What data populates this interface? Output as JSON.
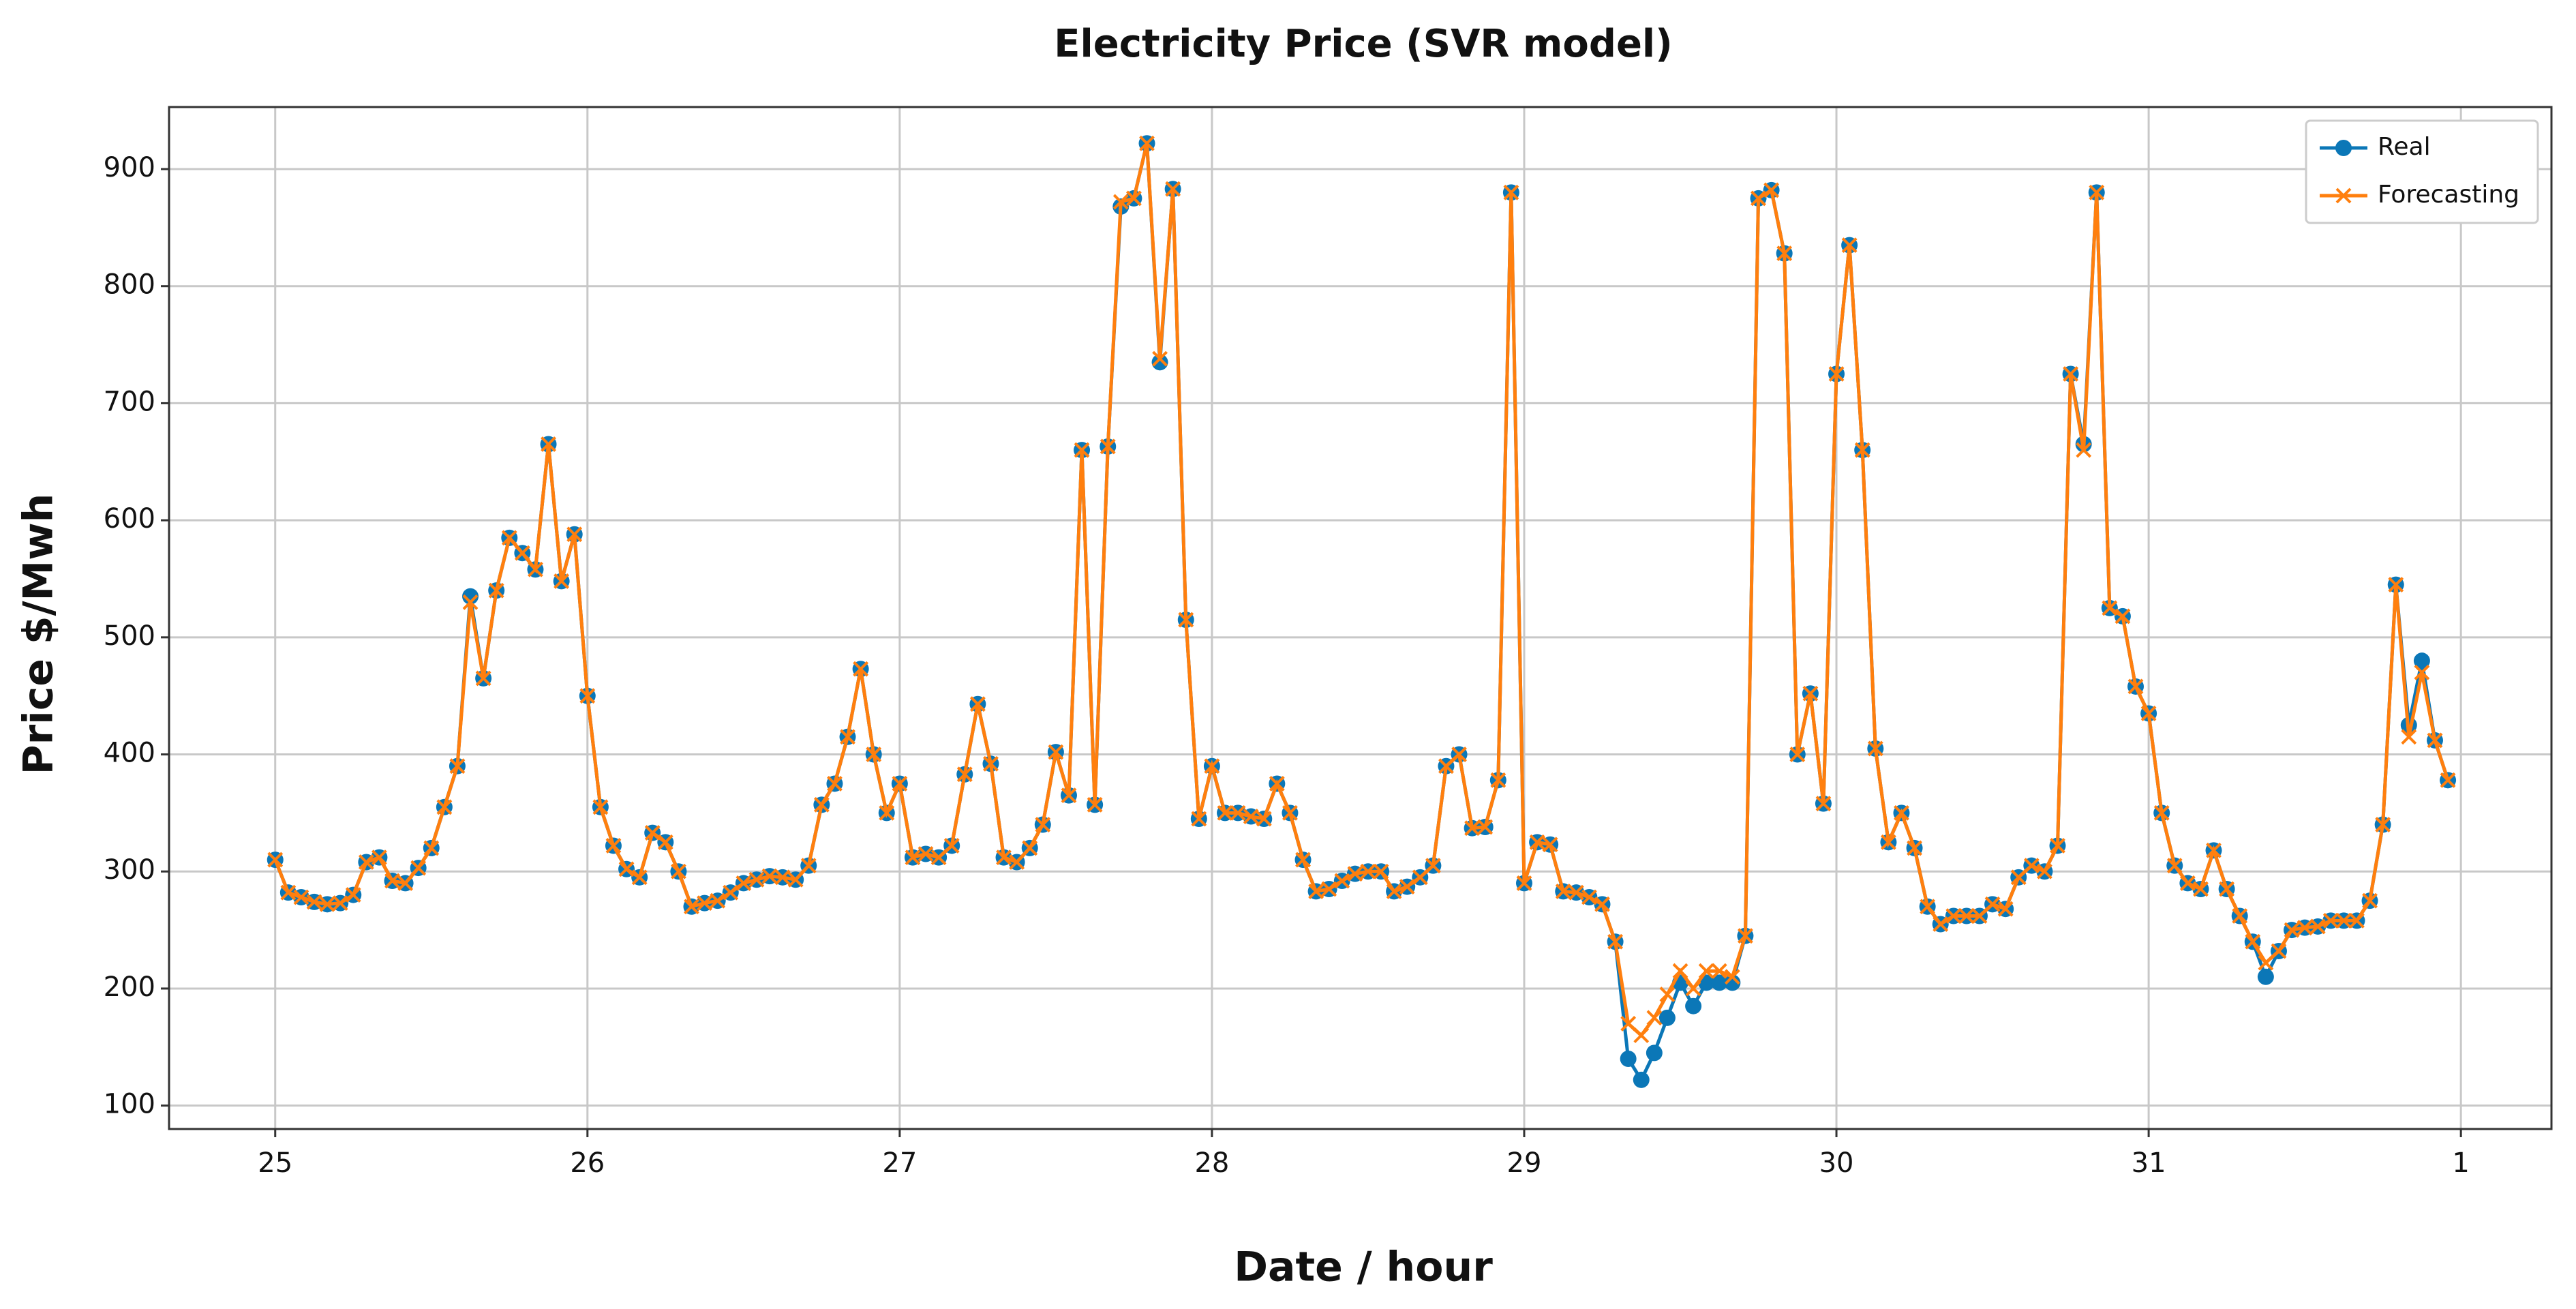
{
  "chart_data": {
    "type": "line",
    "title": "Electricity  Price (SVR model)",
    "xlabel": "Date / hour",
    "ylabel": "Price $/Mwh",
    "x": [
      25,
      25.0417,
      25.0833,
      25.125,
      25.1667,
      25.2083,
      25.25,
      25.2917,
      25.3333,
      25.375,
      25.4167,
      25.4583,
      25.5,
      25.5417,
      25.5833,
      25.625,
      25.6667,
      25.7083,
      25.75,
      25.7917,
      25.8333,
      25.875,
      25.9167,
      25.9583,
      26,
      26.0417,
      26.0833,
      26.125,
      26.1667,
      26.2083,
      26.25,
      26.2917,
      26.3333,
      26.375,
      26.4167,
      26.4583,
      26.5,
      26.5417,
      26.5833,
      26.625,
      26.6667,
      26.7083,
      26.75,
      26.7917,
      26.8333,
      26.875,
      26.9167,
      26.9583,
      27,
      27.0417,
      27.0833,
      27.125,
      27.1667,
      27.2083,
      27.25,
      27.2917,
      27.3333,
      27.375,
      27.4167,
      27.4583,
      27.5,
      27.5417,
      27.5833,
      27.625,
      27.6667,
      27.7083,
      27.75,
      27.7917,
      27.8333,
      27.875,
      27.9167,
      27.9583,
      28,
      28.0417,
      28.0833,
      28.125,
      28.1667,
      28.2083,
      28.25,
      28.2917,
      28.3333,
      28.375,
      28.4167,
      28.4583,
      28.5,
      28.5417,
      28.5833,
      28.625,
      28.6667,
      28.7083,
      28.75,
      28.7917,
      28.8333,
      28.875,
      28.9167,
      28.9583,
      29,
      29.0417,
      29.0833,
      29.125,
      29.1667,
      29.2083,
      29.25,
      29.2917,
      29.3333,
      29.375,
      29.4167,
      29.4583,
      29.5,
      29.5417,
      29.5833,
      29.625,
      29.6667,
      29.7083,
      29.75,
      29.7917,
      29.8333,
      29.875,
      29.9167,
      29.9583,
      30,
      30.0417,
      30.0833,
      30.125,
      30.1667,
      30.2083,
      30.25,
      30.2917,
      30.3333,
      30.375,
      30.4167,
      30.4583,
      30.5,
      30.5417,
      30.5833,
      30.625,
      30.6667,
      30.7083,
      30.75,
      30.7917,
      30.8333,
      30.875,
      30.9167,
      30.9583,
      31,
      31.0417,
      31.0833,
      31.125,
      31.1667,
      31.2083,
      31.25,
      31.2917,
      31.3333,
      31.375,
      31.4167,
      31.4583,
      31.5,
      31.5417,
      31.5833,
      31.625,
      31.6667,
      31.7083,
      31.75,
      31.7917,
      31.8333,
      31.875,
      31.9167,
      31.9583
    ],
    "series": [
      {
        "name": "Real",
        "color": "#0b77b7",
        "marker": "o",
        "values": [
          310,
          282,
          278,
          274,
          272,
          273,
          280,
          308,
          312,
          292,
          290,
          303,
          320,
          355,
          390,
          535,
          465,
          540,
          585,
          572,
          558,
          665,
          548,
          588,
          450,
          355,
          322,
          302,
          295,
          333,
          325,
          300,
          270,
          273,
          275,
          282,
          290,
          293,
          296,
          295,
          293,
          305,
          357,
          375,
          415,
          473,
          400,
          350,
          375,
          312,
          315,
          312,
          322,
          383,
          443,
          392,
          312,
          308,
          320,
          340,
          402,
          365,
          660,
          357,
          663,
          868,
          875,
          922,
          735,
          883,
          515,
          345,
          390,
          350,
          350,
          347,
          345,
          375,
          350,
          310,
          283,
          285,
          292,
          298,
          300,
          300,
          283,
          287,
          295,
          305,
          390,
          400,
          337,
          338,
          378,
          880,
          290,
          325,
          323,
          283,
          282,
          278,
          272,
          240,
          140,
          122,
          145,
          175,
          205,
          185,
          205,
          205,
          205,
          245,
          875,
          882,
          828,
          400,
          452,
          358,
          725,
          835,
          660,
          405,
          325,
          350,
          320,
          270,
          255,
          262,
          262,
          262,
          272,
          268,
          295,
          305,
          300,
          322,
          725,
          665,
          880,
          525,
          518,
          458,
          435,
          350,
          305,
          290,
          285,
          318,
          285,
          262,
          240,
          210,
          232,
          250,
          252,
          253,
          258,
          258,
          258,
          275,
          340,
          545,
          425,
          480,
          412,
          378
        ]
      },
      {
        "name": "Forecasting",
        "color": "#ff7f0e",
        "marker": "x",
        "values": [
          310,
          282,
          278,
          274,
          272,
          273,
          280,
          308,
          312,
          292,
          290,
          303,
          320,
          355,
          390,
          530,
          465,
          540,
          585,
          572,
          558,
          665,
          548,
          588,
          450,
          355,
          322,
          302,
          295,
          333,
          325,
          300,
          270,
          273,
          275,
          282,
          290,
          293,
          296,
          295,
          293,
          305,
          357,
          375,
          415,
          473,
          400,
          350,
          375,
          312,
          315,
          312,
          322,
          383,
          443,
          392,
          312,
          308,
          320,
          340,
          402,
          365,
          660,
          357,
          663,
          872,
          875,
          922,
          738,
          883,
          515,
          345,
          390,
          350,
          350,
          347,
          345,
          375,
          350,
          310,
          283,
          285,
          292,
          298,
          300,
          300,
          283,
          287,
          295,
          305,
          390,
          400,
          337,
          338,
          378,
          880,
          290,
          325,
          323,
          283,
          282,
          278,
          272,
          240,
          170,
          160,
          175,
          195,
          215,
          200,
          215,
          215,
          210,
          245,
          875,
          882,
          828,
          400,
          452,
          358,
          725,
          835,
          660,
          405,
          325,
          350,
          320,
          270,
          255,
          262,
          262,
          262,
          272,
          268,
          295,
          305,
          300,
          322,
          725,
          660,
          880,
          525,
          518,
          458,
          435,
          350,
          305,
          290,
          285,
          318,
          285,
          262,
          240,
          222,
          232,
          250,
          252,
          253,
          258,
          258,
          258,
          275,
          340,
          545,
          415,
          470,
          412,
          378
        ]
      }
    ],
    "xlim": [
      24.66,
      32.29
    ],
    "xticks": [
      25,
      26,
      27,
      28,
      29,
      30,
      31,
      {
        "value": 32,
        "label": "1"
      }
    ],
    "ylim": [
      80,
      953
    ],
    "yticks": [
      100,
      200,
      300,
      400,
      500,
      600,
      700,
      800,
      900
    ],
    "grid": true,
    "legend": "upper right"
  }
}
